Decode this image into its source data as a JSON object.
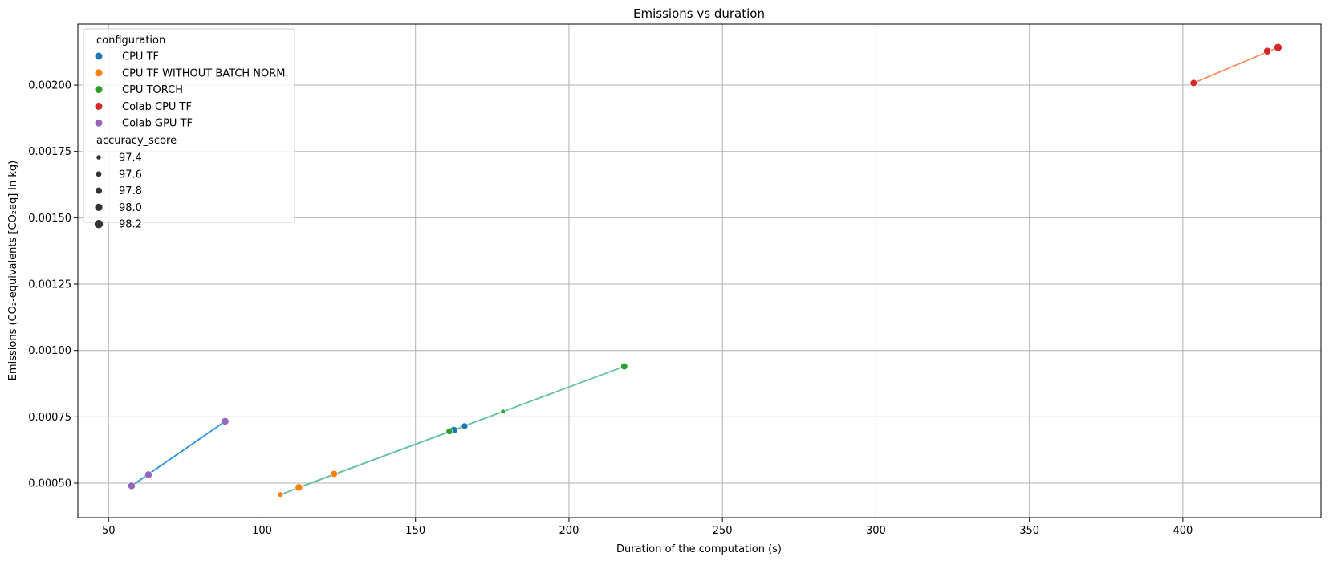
{
  "chart_data": {
    "type": "scatter",
    "title": "Emissions vs duration",
    "xlabel": "Duration of the computation (s)",
    "ylabel": "Emissions (CO₂-equivalents [CO₂eq] in kg)",
    "xlim": [
      40,
      445
    ],
    "ylim": [
      0.00037,
      0.00223
    ],
    "xticks": [
      50,
      100,
      150,
      200,
      250,
      300,
      350,
      400
    ],
    "yticks": [
      0.0005,
      0.00075,
      0.001,
      0.00125,
      0.0015,
      0.00175,
      0.002
    ],
    "xtick_labels": [
      "50",
      "100",
      "150",
      "200",
      "250",
      "300",
      "350",
      "400"
    ],
    "ytick_labels": [
      "0.00050",
      "0.00075",
      "0.00100",
      "0.00125",
      "0.00150",
      "0.00175",
      "0.00200"
    ],
    "grid": true,
    "legend_position": "upper-left",
    "legend": {
      "hue_title": "configuration",
      "size_title": "accuracy_score",
      "size_levels": [
        {
          "label": "97.4",
          "value": 97.4
        },
        {
          "label": "97.6",
          "value": 97.6
        },
        {
          "label": "97.8",
          "value": 97.8
        },
        {
          "label": "98.0",
          "value": 98.0
        },
        {
          "label": "98.2",
          "value": 98.2
        }
      ]
    },
    "series": [
      {
        "name": "CPU TF",
        "color": "#1f77b4",
        "line_color": "#66c2a5",
        "points": [
          {
            "x": 161.5,
            "y": 0.000697,
            "accuracy": 97.9
          },
          {
            "x": 162.5,
            "y": 0.0007,
            "accuracy": 98.0
          },
          {
            "x": 166.0,
            "y": 0.000715,
            "accuracy": 97.8
          }
        ]
      },
      {
        "name": "CPU TF WITHOUT BATCH NORM.",
        "color": "#ff7f0e",
        "line_color": "#66c2a5",
        "points": [
          {
            "x": 106.0,
            "y": 0.000457,
            "accuracy": 97.6
          },
          {
            "x": 112.0,
            "y": 0.000484,
            "accuracy": 98.0
          },
          {
            "x": 123.5,
            "y": 0.000535,
            "accuracy": 97.9
          }
        ]
      },
      {
        "name": "CPU TORCH",
        "color": "#2ca02c",
        "line_color": "#66c2a5",
        "points": [
          {
            "x": 161.0,
            "y": 0.000695,
            "accuracy": 97.8
          },
          {
            "x": 178.5,
            "y": 0.00077,
            "accuracy": 97.4
          },
          {
            "x": 218.0,
            "y": 0.00094,
            "accuracy": 97.9
          }
        ]
      },
      {
        "name": "Colab CPU TF",
        "color": "#d62728",
        "line_color": "#fc8d62",
        "points": [
          {
            "x": 403.5,
            "y": 0.002008,
            "accuracy": 97.9
          },
          {
            "x": 427.5,
            "y": 0.002128,
            "accuracy": 98.0
          },
          {
            "x": 431.0,
            "y": 0.002142,
            "accuracy": 98.1
          }
        ]
      },
      {
        "name": "Colab GPU TF",
        "color": "#9467bd",
        "line_color": "#2a90e0",
        "points": [
          {
            "x": 57.5,
            "y": 0.00049,
            "accuracy": 98.0
          },
          {
            "x": 63.0,
            "y": 0.000532,
            "accuracy": 98.0
          },
          {
            "x": 88.0,
            "y": 0.000733,
            "accuracy": 98.0
          }
        ]
      }
    ],
    "fit_lines": [
      {
        "color": "#66c2a5",
        "points": [
          {
            "x": 106.0,
            "y": 0.000457
          },
          {
            "x": 218.0,
            "y": 0.00094
          }
        ]
      },
      {
        "color": "#66c2a5",
        "points": [
          {
            "x": 112.0,
            "y": 0.000484
          },
          {
            "x": 166.0,
            "y": 0.000715
          }
        ]
      },
      {
        "color": "#fc8d62",
        "points": [
          {
            "x": 403.5,
            "y": 0.002008
          },
          {
            "x": 431.0,
            "y": 0.002142
          }
        ]
      },
      {
        "color": "#2a90e0",
        "points": [
          {
            "x": 57.5,
            "y": 0.00049
          },
          {
            "x": 88.0,
            "y": 0.000733
          }
        ]
      }
    ]
  }
}
